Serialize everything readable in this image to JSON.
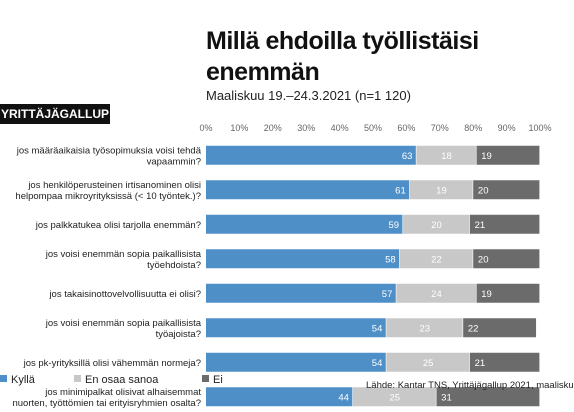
{
  "chart_data": {
    "type": "bar",
    "stacked": true,
    "orientation": "horizontal",
    "title": "Millä ehdoilla työllistäisi enemmän",
    "subtitle": "Maaliskuu 19.–24.3.2021 (n=1 120)",
    "badge": "YRITTÄJÄGALLUP",
    "xlim": [
      0,
      100
    ],
    "x_ticks": [
      "0%",
      "10%",
      "20%",
      "30%",
      "40%",
      "50%",
      "60%",
      "70%",
      "80%",
      "90%",
      "100%"
    ],
    "categories": [
      [
        "jos määräaikaisia työsopimuksia voisi tehdä",
        "vapaammin?"
      ],
      [
        "jos henkilöperusteinen irtisanominen olisi",
        "helpompaa mikroyrityksissä (< 10 työntek.)?"
      ],
      [
        "jos palkkatukea olisi tarjolla enemmän?"
      ],
      [
        "jos voisi enemmän sopia paikallisista",
        "työehdoista?"
      ],
      [
        "jos takaisinottovelvollisuutta ei olisi?"
      ],
      [
        "jos voisi enemmän sopia paikallisista",
        "työajoista?"
      ],
      [
        "jos pk-yrityksillä olisi vähemmän normeja?"
      ],
      [
        "jos minimipalkat olisivat alhaisemmat",
        "nuorten, työttömien tai erityisryhmien osalta?"
      ]
    ],
    "series": [
      {
        "name": "Kyllä",
        "color": "#4f8fc7",
        "values": [
          63,
          61,
          59,
          58,
          57,
          54,
          54,
          44
        ]
      },
      {
        "name": "En osaa sanoa",
        "color": "#c8c8c8",
        "values": [
          18,
          19,
          20,
          22,
          24,
          23,
          25,
          25
        ]
      },
      {
        "name": "Ei",
        "color": "#6b6b6b",
        "values": [
          19,
          20,
          21,
          20,
          19,
          22,
          21,
          31
        ]
      }
    ],
    "source": "Lähde: Kantar TNS, Yrittäjägallup 2021, maalisku"
  }
}
